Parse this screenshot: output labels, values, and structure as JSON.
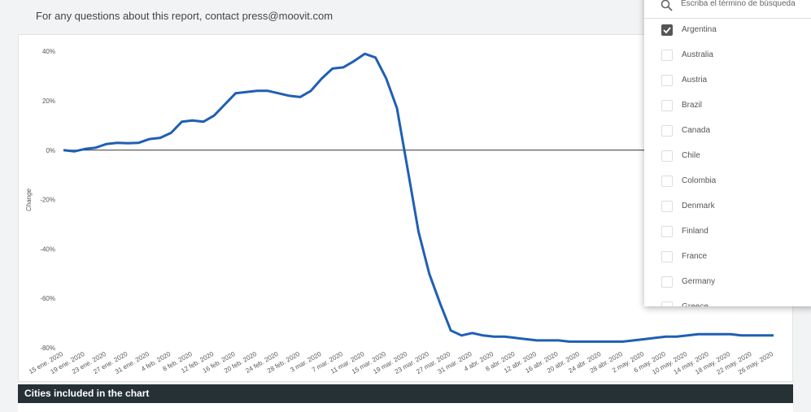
{
  "header": {
    "note": "For any questions about this report, contact press@moovit.com"
  },
  "chart_data": {
    "type": "line",
    "y_label": "Change",
    "color": "#1f5fb4",
    "categories": [
      "15 ene. 2020",
      null,
      "19 ene. 2020",
      null,
      "23 ene. 2020",
      null,
      "27 ene. 2020",
      null,
      "31 ene. 2020",
      null,
      "4 feb. 2020",
      null,
      "8 feb. 2020",
      null,
      "12 feb. 2020",
      null,
      "16 feb. 2020",
      null,
      "20 feb. 2020",
      null,
      "24 feb. 2020",
      null,
      "28 feb. 2020",
      null,
      "3 mar. 2020",
      null,
      "7 mar. 2020",
      null,
      "11 mar. 2020",
      null,
      "15 mar. 2020",
      null,
      "19 mar. 2020",
      null,
      "23 mar. 2020",
      null,
      "27 mar. 2020",
      null,
      "31 mar. 2020",
      null,
      "4 abr. 2020",
      null,
      "8 abr. 2020",
      null,
      "12 abr. 2020",
      null,
      "16 abr. 2020",
      null,
      "20 abr. 2020",
      null,
      "24 abr. 2020",
      null,
      "28 abr. 2020",
      null,
      "2 may. 2020",
      null,
      "6 may. 2020",
      null,
      "10 may. 2020",
      null,
      "14 may. 2020",
      null,
      "18 may. 2020",
      null,
      "22 may. 2020",
      null,
      "26 may. 2020"
    ],
    "values": [
      0,
      -0.5,
      0.5,
      1,
      2.5,
      3,
      2.8,
      3,
      4.5,
      5,
      7,
      11.5,
      12,
      11.5,
      14,
      18.5,
      23,
      23.5,
      24,
      24,
      23,
      22,
      21.5,
      24,
      29,
      33,
      33.5,
      36,
      39,
      37.5,
      29,
      17,
      -8,
      -33,
      -50,
      -62,
      -73,
      -75,
      -74,
      -75,
      -75.5,
      -75.5,
      -76,
      -76.5,
      -77,
      -77,
      -77,
      -77.5,
      -77.5,
      -77.5,
      -77.5,
      -77.5,
      -77.5,
      -77,
      -76.5,
      -76,
      -75.5,
      -75.5,
      -75,
      -74.5,
      -74.5,
      -74.5,
      -74.5,
      -75,
      -75,
      -75,
      -75
    ],
    "ylim": [
      -80,
      44
    ],
    "yticks": [
      {
        "value": 40,
        "label": "40%"
      },
      {
        "value": 20,
        "label": "20%"
      },
      {
        "value": 0,
        "label": "0%"
      },
      {
        "value": -20,
        "label": "-20%"
      },
      {
        "value": -40,
        "label": "-40%"
      },
      {
        "value": -60,
        "label": "-60%"
      },
      {
        "value": -80,
        "label": "-80%"
      }
    ],
    "zero_line": true
  },
  "dropdown": {
    "placeholder": "Escriba el término de búsqueda",
    "options": [
      {
        "label": "Argentina",
        "checked": true
      },
      {
        "label": "Australia",
        "checked": false
      },
      {
        "label": "Austria",
        "checked": false
      },
      {
        "label": "Brazil",
        "checked": false
      },
      {
        "label": "Canada",
        "checked": false
      },
      {
        "label": "Chile",
        "checked": false
      },
      {
        "label": "Colombia",
        "checked": false
      },
      {
        "label": "Denmark",
        "checked": false
      },
      {
        "label": "Finland",
        "checked": false
      },
      {
        "label": "France",
        "checked": false
      },
      {
        "label": "Germany",
        "checked": false
      },
      {
        "label": "Greece",
        "checked": false
      }
    ]
  },
  "footer": {
    "title": "Cities included in the chart"
  }
}
